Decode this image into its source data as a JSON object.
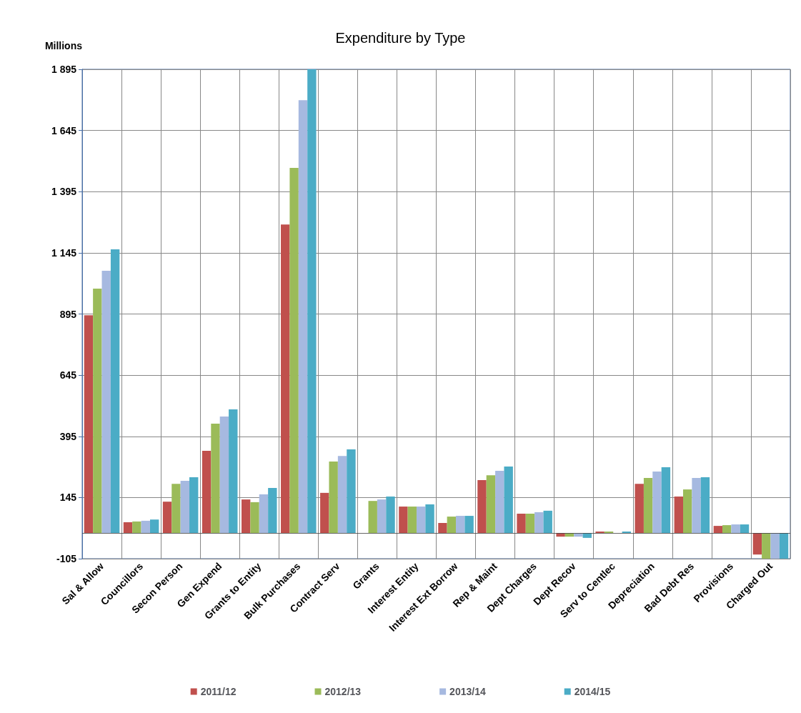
{
  "chart_data": {
    "type": "bar",
    "title": "Expenditure by Type",
    "ylabel": "Millions",
    "categories": [
      "Sal & Allow",
      "Councillors",
      "Secon Person",
      "Gen Expend",
      "Grants to Entity",
      "Bulk Purchases",
      "Contract Serv",
      "Grants",
      "Interest Entity",
      "Interest Ext Borrow",
      "Rep & Maint",
      "Dept Charges",
      "Dept Recov",
      "Serv to Centlec",
      "Depreciation",
      "Bad Debt Res",
      "Provisions",
      "Charged Out"
    ],
    "series": [
      {
        "name": "2011/12",
        "color": "#c0504d",
        "values": [
          890,
          44,
          128,
          336,
          137,
          1261,
          164,
          null,
          108,
          41,
          216,
          79,
          -15,
          6,
          201,
          149,
          29,
          -88
        ]
      },
      {
        "name": "2012/13",
        "color": "#9bbb59",
        "values": [
          999,
          47,
          201,
          447,
          126,
          1492,
          292,
          131,
          108,
          67,
          236,
          79,
          -15,
          6,
          225,
          178,
          32,
          -105
        ]
      },
      {
        "name": "2013/14",
        "color": "#a6b9e0",
        "values": [
          1072,
          50,
          213,
          476,
          158,
          1769,
          315,
          137,
          108,
          70,
          254,
          85,
          -15,
          0,
          251,
          225,
          35,
          -105
        ]
      },
      {
        "name": "2014/15",
        "color": "#4bacc6",
        "values": [
          1159,
          55,
          228,
          505,
          184,
          1895,
          342,
          149,
          117,
          70,
          272,
          91,
          -20,
          6,
          269,
          228,
          35,
          -105
        ]
      }
    ],
    "ylim": [
      -105,
      1895
    ],
    "yticks": [
      {
        "value": -105,
        "label": "-105"
      },
      {
        "value": 145,
        "label": "145"
      },
      {
        "value": 395,
        "label": "395"
      },
      {
        "value": 645,
        "label": "645"
      },
      {
        "value": 895,
        "label": "895"
      },
      {
        "value": 1145,
        "label": "1 145"
      },
      {
        "value": 1395,
        "label": "1 395"
      },
      {
        "value": 1645,
        "label": "1 645"
      },
      {
        "value": 1895,
        "label": "1 895"
      }
    ],
    "ref_lines": [
      {
        "axis": "y",
        "value": 0,
        "color": "#404040"
      }
    ],
    "grid": true,
    "legend": "bottom"
  }
}
